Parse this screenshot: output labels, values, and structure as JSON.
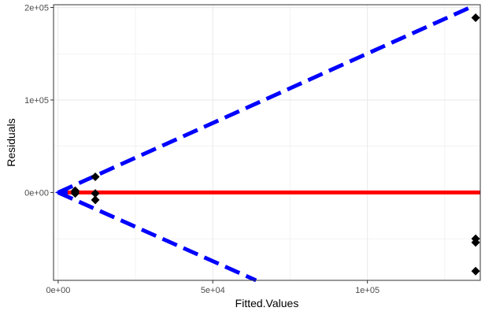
{
  "chart_data": {
    "type": "scatter",
    "title": "",
    "xlabel": "Fitted.Values",
    "ylabel": "Residuals",
    "xlim": [
      -1500,
      136500
    ],
    "ylim": [
      -95000,
      203000
    ],
    "x_ticks": [
      {
        "value": 0,
        "label": "0e+00"
      },
      {
        "value": 50000,
        "label": "5e+04"
      },
      {
        "value": 100000,
        "label": "1e+05"
      }
    ],
    "y_ticks": [
      {
        "value": 0,
        "label": "0e+00"
      },
      {
        "value": 100000,
        "label": "1e+05"
      },
      {
        "value": 200000,
        "label": "2e+05"
      }
    ],
    "x_minor": [
      25000,
      75000,
      125000
    ],
    "y_minor": [
      -50000,
      50000,
      150000
    ],
    "grid": true,
    "legend": "none",
    "points": [
      {
        "x": 5500,
        "y": 2000
      },
      {
        "x": 5500,
        "y": -1000
      },
      {
        "x": 5500,
        "y": 500
      },
      {
        "x": 12000,
        "y": -1000
      },
      {
        "x": 12000,
        "y": -8000
      },
      {
        "x": 12000,
        "y": 17000
      },
      {
        "x": 135000,
        "y": 189000
      },
      {
        "x": 135000,
        "y": -50000
      },
      {
        "x": 135000,
        "y": -54000
      },
      {
        "x": 135000,
        "y": -85000
      }
    ],
    "reference_lines": [
      {
        "name": "zero",
        "color": "#ff0000",
        "style": "solid",
        "points": [
          [
            0,
            0
          ],
          [
            136500,
            0
          ]
        ]
      },
      {
        "name": "upper",
        "color": "#0000ff",
        "style": "dashed",
        "points": [
          [
            0,
            0
          ],
          [
            134500,
            202000
          ]
        ]
      },
      {
        "name": "lower",
        "color": "#0000ff",
        "style": "dashed",
        "points": [
          [
            0,
            0
          ],
          [
            64000,
            -95000
          ]
        ]
      }
    ],
    "colors": {
      "points": "#000000",
      "grid": "#ebebeb",
      "panel_border": "#333333"
    }
  }
}
